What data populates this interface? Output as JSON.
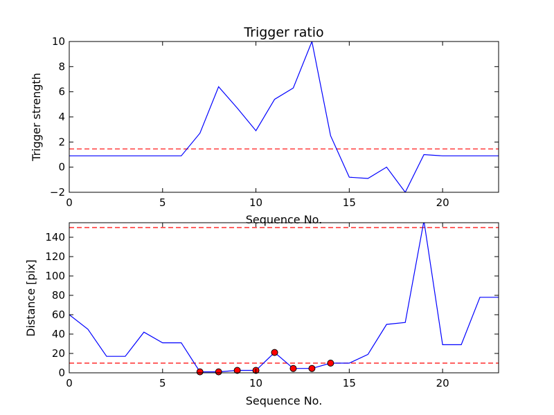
{
  "chart_data": [
    {
      "type": "line",
      "title": "Trigger ratio",
      "xlabel": "Sequence No.",
      "ylabel": "Trigger strength",
      "xlim": [
        0,
        23
      ],
      "ylim": [
        -2,
        10
      ],
      "xticks": [
        0,
        5,
        10,
        15,
        20
      ],
      "yticks": [
        -2,
        0,
        2,
        4,
        6,
        8,
        10
      ],
      "grid": false,
      "series": [
        {
          "color": "#0000ff",
          "style": "solid",
          "x": [
            0,
            1,
            2,
            3,
            4,
            5,
            6,
            7,
            8,
            9,
            10,
            11,
            12,
            13,
            14,
            15,
            16,
            17,
            18,
            19,
            20,
            21,
            22,
            23
          ],
          "y": [
            0.9,
            0.9,
            0.9,
            0.9,
            0.9,
            0.9,
            0.9,
            2.7,
            6.4,
            4.7,
            2.9,
            5.4,
            6.3,
            10.0,
            2.5,
            -0.8,
            -0.9,
            0.0,
            -2.0,
            1.0,
            0.9,
            0.9,
            0.9,
            0.9
          ]
        }
      ],
      "hlines": [
        {
          "y": 1.45,
          "color": "#ff0000",
          "style": "dashed"
        }
      ]
    },
    {
      "type": "line",
      "title": "",
      "xlabel": "Sequence No.",
      "ylabel": "Distance [pix]",
      "xlim": [
        0,
        23
      ],
      "ylim": [
        0,
        155
      ],
      "xticks": [
        0,
        5,
        10,
        15,
        20
      ],
      "yticks": [
        0,
        20,
        40,
        60,
        80,
        100,
        120,
        140
      ],
      "grid": false,
      "series": [
        {
          "color": "#0000ff",
          "style": "solid",
          "x": [
            0,
            1,
            2,
            3,
            4,
            5,
            6,
            7,
            8,
            9,
            10,
            11,
            12,
            13,
            14,
            15,
            16,
            17,
            18,
            19,
            20,
            21,
            22,
            23
          ],
          "y": [
            60,
            45,
            17,
            17,
            42,
            31,
            31,
            1,
            1,
            2.5,
            2.5,
            21,
            4.5,
            4.5,
            10,
            10,
            19,
            50,
            52,
            157,
            29,
            29,
            78,
            78
          ]
        },
        {
          "color": "#ff0000",
          "style": "markers",
          "x": [
            7,
            8,
            9,
            10,
            11,
            12,
            13,
            14
          ],
          "y": [
            1,
            1,
            2.5,
            2.5,
            21,
            4.5,
            4.5,
            10
          ]
        }
      ],
      "hlines": [
        {
          "y": 150,
          "color": "#ff0000",
          "style": "dashed"
        },
        {
          "y": 10,
          "color": "#ff0000",
          "style": "dashed"
        }
      ]
    }
  ]
}
